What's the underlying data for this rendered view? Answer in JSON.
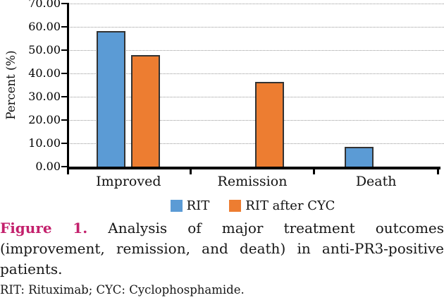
{
  "chart_data": {
    "type": "bar",
    "title": "",
    "categories": [
      "Improved",
      "Remission",
      "Death"
    ],
    "series": [
      {
        "name": "RIT",
        "color": "#5B9BD5",
        "values": [
          58.3,
          0,
          8.4
        ]
      },
      {
        "name": "RIT after CYC",
        "color": "#ED7D31",
        "values": [
          47.8,
          36.3,
          0
        ]
      }
    ],
    "xlabel": "",
    "ylabel": "Percent (%)",
    "ylim": [
      0,
      70
    ],
    "yticks": [
      "0.00",
      "10.00",
      "20.00",
      "30.00",
      "40.00",
      "50.00",
      "60.00",
      "70.00"
    ],
    "grid": "horizontal-dotted",
    "gridline_color": "#989898",
    "bar_border_color": "#333333",
    "legend_position": "bottom-center",
    "legend_labels": [
      "RIT",
      "RIT after CYC"
    ]
  },
  "caption": {
    "label": "Figure 1.",
    "label_color": "#C3206C",
    "lines": [
      "Analysis of major treatment outcomes",
      "(improvement, remission, and death) in anti-PR3-positive",
      "patients."
    ],
    "footnote": "RIT: Rituximab; CYC: Cyclophosphamide."
  }
}
